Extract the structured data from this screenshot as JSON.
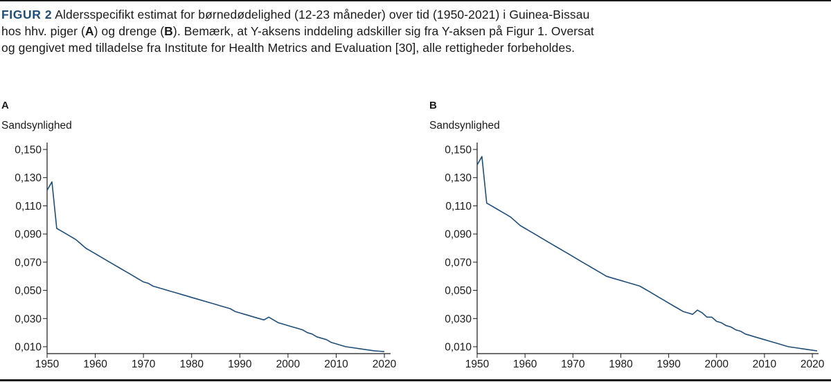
{
  "caption": {
    "figure_label": "FIGUR 2",
    "text_1": "Aldersspecifikt estimat for børnedødelighed (12-23 måneder) over tid (1950-2021) i Guinea-Bissau hos hhv. piger (",
    "bold_a": "A",
    "text_2": ") og drenge (",
    "bold_b": "B",
    "text_3": "). Bemærk, at Y-aksens inddeling adskiller sig fra Y-aksen på Figur 1. Oversat og gengivet med tilladelse fra Institute for Health Metrics and Evaluation [30], alle rettigheder forbeholdes."
  },
  "colors": {
    "series": "#1f4e79",
    "axis": "#1a1a1a",
    "figure_label": "#1f4e79"
  },
  "chart_data": [
    {
      "type": "line",
      "panel_label": "A",
      "ylabel": "Sandsynlighed",
      "xlim": [
        1950,
        2021
      ],
      "ylim": [
        0.005,
        0.15
      ],
      "yticks": [
        0.15,
        0.13,
        0.11,
        0.09,
        0.07,
        0.05,
        0.03,
        0.01
      ],
      "ytick_labels": [
        "0,150",
        "0,130",
        "0,110",
        "0,090",
        "0,070",
        "0,050",
        "0,030",
        "0,010"
      ],
      "xticks": [
        1950,
        1960,
        1970,
        1980,
        1990,
        2000,
        2010,
        2020
      ],
      "xtick_labels": [
        "1950",
        "1960",
        "1970",
        "1980",
        "1990",
        "2000",
        "2010",
        "2020"
      ],
      "grid": false,
      "series": [
        {
          "x": [
            1950,
            1951,
            1952,
            1953,
            1954,
            1955,
            1956,
            1957,
            1958,
            1959,
            1960,
            1961,
            1962,
            1963,
            1964,
            1965,
            1966,
            1967,
            1968,
            1969,
            1970,
            1971,
            1972,
            1973,
            1974,
            1975,
            1976,
            1977,
            1978,
            1979,
            1980,
            1981,
            1982,
            1983,
            1984,
            1985,
            1986,
            1987,
            1988,
            1989,
            1990,
            1991,
            1992,
            1993,
            1994,
            1995,
            1996,
            1997,
            1998,
            1999,
            2000,
            2001,
            2002,
            2003,
            2004,
            2005,
            2006,
            2007,
            2008,
            2009,
            2010,
            2011,
            2012,
            2013,
            2014,
            2015,
            2016,
            2017,
            2018,
            2019,
            2020
          ],
          "y": [
            0.121,
            0.127,
            0.094,
            0.092,
            0.09,
            0.088,
            0.086,
            0.083,
            0.08,
            0.078,
            0.076,
            0.074,
            0.072,
            0.07,
            0.068,
            0.066,
            0.064,
            0.062,
            0.06,
            0.058,
            0.056,
            0.055,
            0.053,
            0.052,
            0.051,
            0.05,
            0.049,
            0.048,
            0.047,
            0.046,
            0.045,
            0.044,
            0.043,
            0.042,
            0.041,
            0.04,
            0.039,
            0.038,
            0.037,
            0.035,
            0.034,
            0.033,
            0.032,
            0.031,
            0.03,
            0.029,
            0.031,
            0.029,
            0.027,
            0.026,
            0.025,
            0.024,
            0.023,
            0.022,
            0.02,
            0.019,
            0.017,
            0.016,
            0.015,
            0.013,
            0.012,
            0.011,
            0.01,
            0.0095,
            0.009,
            0.0085,
            0.008,
            0.0075,
            0.007,
            0.0068,
            0.0065
          ]
        }
      ]
    },
    {
      "type": "line",
      "panel_label": "B",
      "ylabel": "Sandsynlighed",
      "xlim": [
        1950,
        2021
      ],
      "ylim": [
        0.005,
        0.15
      ],
      "yticks": [
        0.15,
        0.13,
        0.11,
        0.09,
        0.07,
        0.05,
        0.03,
        0.01
      ],
      "ytick_labels": [
        "0,150",
        "0,130",
        "0,110",
        "0,090",
        "0,070",
        "0,050",
        "0,030",
        "0,010"
      ],
      "xticks": [
        1950,
        1960,
        1970,
        1980,
        1990,
        2000,
        2010,
        2020
      ],
      "xtick_labels": [
        "1950",
        "1960",
        "1970",
        "1980",
        "1990",
        "2000",
        "2010",
        "2020"
      ],
      "grid": false,
      "series": [
        {
          "x": [
            1950,
            1951,
            1952,
            1953,
            1954,
            1955,
            1956,
            1957,
            1958,
            1959,
            1960,
            1961,
            1962,
            1963,
            1964,
            1965,
            1966,
            1967,
            1968,
            1969,
            1970,
            1971,
            1972,
            1973,
            1974,
            1975,
            1976,
            1977,
            1978,
            1979,
            1980,
            1981,
            1982,
            1983,
            1984,
            1985,
            1986,
            1987,
            1988,
            1989,
            1990,
            1991,
            1992,
            1993,
            1994,
            1995,
            1996,
            1997,
            1998,
            1999,
            2000,
            2001,
            2002,
            2003,
            2004,
            2005,
            2006,
            2007,
            2008,
            2009,
            2010,
            2011,
            2012,
            2013,
            2014,
            2015,
            2016,
            2017,
            2018,
            2019,
            2020,
            2021
          ],
          "y": [
            0.139,
            0.145,
            0.112,
            0.11,
            0.108,
            0.106,
            0.104,
            0.102,
            0.099,
            0.096,
            0.094,
            0.092,
            0.09,
            0.088,
            0.086,
            0.084,
            0.082,
            0.08,
            0.078,
            0.076,
            0.074,
            0.072,
            0.07,
            0.068,
            0.066,
            0.064,
            0.062,
            0.06,
            0.059,
            0.058,
            0.057,
            0.056,
            0.055,
            0.054,
            0.053,
            0.051,
            0.049,
            0.047,
            0.045,
            0.043,
            0.041,
            0.039,
            0.037,
            0.035,
            0.034,
            0.033,
            0.036,
            0.034,
            0.031,
            0.031,
            0.028,
            0.027,
            0.025,
            0.024,
            0.022,
            0.021,
            0.019,
            0.018,
            0.017,
            0.016,
            0.015,
            0.014,
            0.013,
            0.012,
            0.011,
            0.01,
            0.0095,
            0.009,
            0.0085,
            0.008,
            0.0075,
            0.007
          ]
        }
      ]
    }
  ]
}
